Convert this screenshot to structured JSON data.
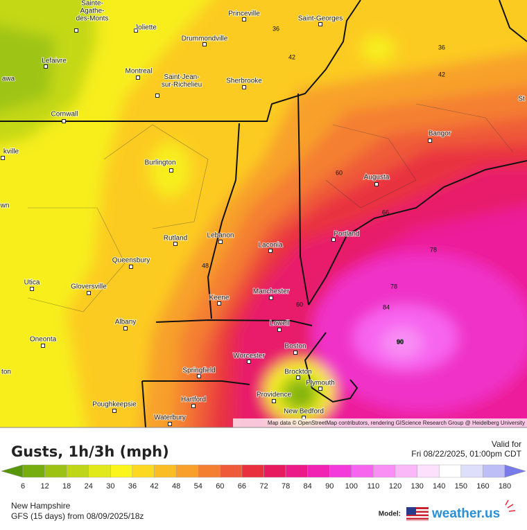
{
  "map": {
    "cities": [
      {
        "lines": [
          "Sainte-",
          "Agathe-",
          "des-Monts"
        ]
      },
      {
        "lines": [
          "Joliette"
        ]
      },
      {
        "lines": [
          "Princeville"
        ]
      },
      {
        "lines": [
          "Saint-Georges"
        ]
      },
      {
        "lines": [
          "Drummondville"
        ]
      },
      {
        "lines": [
          "Lefaivre"
        ]
      },
      {
        "lines": [
          "Montreal"
        ]
      },
      {
        "lines": [
          "Saint-Jean-",
          "sur-Richelieu"
        ]
      },
      {
        "lines": [
          "Sherbrooke"
        ]
      },
      {
        "lines": [
          "Cornwall"
        ]
      },
      {
        "lines": [
          "Burlington"
        ]
      },
      {
        "lines": [
          "Bangor"
        ]
      },
      {
        "lines": [
          "Augusta"
        ]
      },
      {
        "lines": [
          "Portland"
        ]
      },
      {
        "lines": [
          "Laconia"
        ]
      },
      {
        "lines": [
          "Lebanon"
        ]
      },
      {
        "lines": [
          "Rutland"
        ]
      },
      {
        "lines": [
          "Queensbury"
        ]
      },
      {
        "lines": [
          "Utica"
        ]
      },
      {
        "lines": [
          "Gloversville"
        ]
      },
      {
        "lines": [
          "Keene"
        ]
      },
      {
        "lines": [
          "Manchester"
        ]
      },
      {
        "lines": [
          "Albany"
        ]
      },
      {
        "lines": [
          "Lowell"
        ]
      },
      {
        "lines": [
          "Boston"
        ]
      },
      {
        "lines": [
          "Oneonta"
        ]
      },
      {
        "lines": [
          "Worcester"
        ]
      },
      {
        "lines": [
          "Springfield"
        ]
      },
      {
        "lines": [
          "Brockton"
        ]
      },
      {
        "lines": [
          "Plymouth"
        ]
      },
      {
        "lines": [
          "Providence"
        ]
      },
      {
        "lines": [
          "Hartford"
        ]
      },
      {
        "lines": [
          "Poughkeepsie"
        ]
      },
      {
        "lines": [
          "New Bedford"
        ]
      },
      {
        "lines": [
          "Waterbury"
        ]
      },
      {
        "lines": [
          "awa"
        ]
      },
      {
        "lines": [
          "kville"
        ]
      },
      {
        "lines": [
          "wn"
        ]
      },
      {
        "lines": [
          "ton"
        ]
      },
      {
        "lines": [
          "St"
        ]
      }
    ],
    "contour_labels": [
      36,
      42,
      36,
      42,
      60,
      66,
      48,
      60,
      78,
      78,
      84,
      90
    ],
    "attribution": "Map data © OpenStreetMap contributors, rendering GIScience Research Group @ Heidelberg University"
  },
  "panel": {
    "title": "Gusts, 1h/3h (mph)",
    "valid_label": "Valid for",
    "valid_time": "Fri 08/22/2025, 01:00pm CDT",
    "region": "New Hampshire",
    "model_run": "GFS (15 days) from  08/09/2025/18z",
    "model_label": "Model:",
    "brand": "weather.us"
  },
  "legend": {
    "labels": [
      6,
      12,
      18,
      24,
      30,
      36,
      42,
      48,
      54,
      60,
      66,
      72,
      78,
      84,
      90,
      100,
      110,
      120,
      130,
      140,
      150,
      160,
      180
    ],
    "colors": [
      "#5a960a",
      "#78ad0f",
      "#9cc213",
      "#bfd617",
      "#e2e91b",
      "#fbf51c",
      "#fcd920",
      "#fbbd24",
      "#f8a02a",
      "#f47f31",
      "#ef5a38",
      "#e9303f",
      "#e81a5f",
      "#ec1a88",
      "#f023b3",
      "#f43ada",
      "#f765ef",
      "#f98ff4",
      "#fbb8f8",
      "#fde0fc",
      "#ffffff",
      "#dedffa",
      "#bdbef5",
      "#9c9df0",
      "#7a7beb"
    ]
  }
}
